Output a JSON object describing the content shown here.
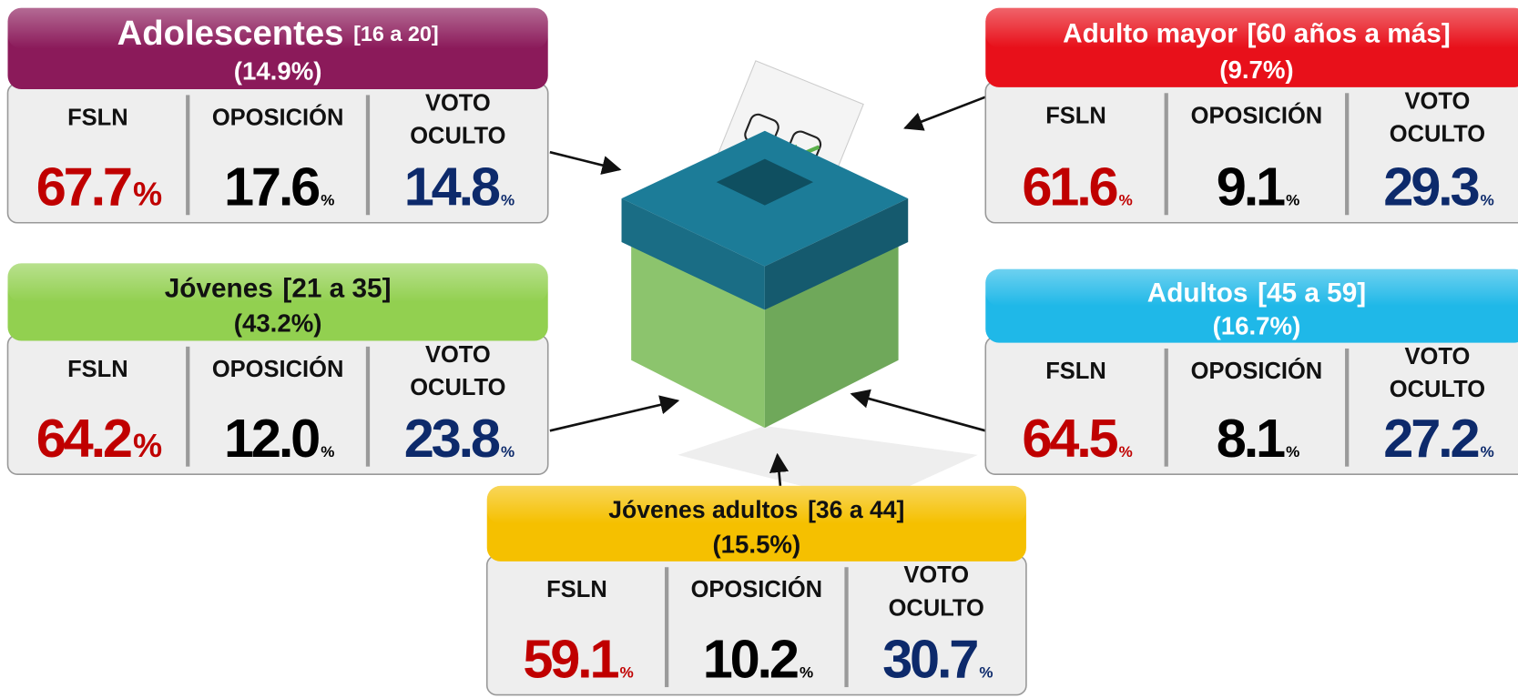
{
  "groups": [
    {
      "name": "Adolescentes",
      "range": "[16 a 20]",
      "share": "(14.9%)",
      "columns": [
        {
          "label": "FSLN",
          "value": "67.7",
          "unit": "%"
        },
        {
          "label": "OPOSICIÓN",
          "value": "17.6",
          "unit": "%"
        },
        {
          "label": "VOTO OCULTO",
          "value": "14.8",
          "unit": "%"
        }
      ]
    },
    {
      "name": "Adulto mayor",
      "range": "[60 años a más]",
      "share": "(9.7%)",
      "columns": [
        {
          "label": "FSLN",
          "value": "61.6",
          "unit": "%"
        },
        {
          "label": "OPOSICIÓN",
          "value": "9.1",
          "unit": "%"
        },
        {
          "label": "VOTO OCULTO",
          "value": "29.3",
          "unit": "%"
        }
      ]
    },
    {
      "name": "Jóvenes",
      "range": "[21 a 35]",
      "share": "(43.2%)",
      "columns": [
        {
          "label": "FSLN",
          "value": "64.2",
          "unit": "%"
        },
        {
          "label": "OPOSICIÓN",
          "value": "12.0",
          "unit": "%"
        },
        {
          "label": "VOTO OCULTO",
          "value": "23.8",
          "unit": "%"
        }
      ]
    },
    {
      "name": "Adultos",
      "range": "[45 a 59]",
      "share": "(16.7%)",
      "columns": [
        {
          "label": "FSLN",
          "value": "64.5",
          "unit": "%"
        },
        {
          "label": "OPOSICIÓN",
          "value": "8.1",
          "unit": "%"
        },
        {
          "label": "VOTO OCULTO",
          "value": "27.2",
          "unit": "%"
        }
      ]
    },
    {
      "name": "Jóvenes adultos",
      "range": "[36 a 44]",
      "share": "(15.5%)",
      "columns": [
        {
          "label": "FSLN",
          "value": "59.1",
          "unit": "%"
        },
        {
          "label": "OPOSICIÓN",
          "value": "10.2",
          "unit": "%"
        },
        {
          "label": "VOTO OCULTO",
          "value": "30.7",
          "unit": "%"
        }
      ]
    }
  ]
}
